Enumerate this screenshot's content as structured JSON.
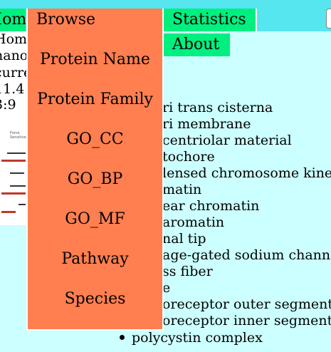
{
  "nav": {
    "home_label": "Home",
    "statistics_label": "Statistics",
    "about_label": "About"
  },
  "infobox": {
    "lines": [
      "Home",
      "nano",
      "curre",
      "11.4",
      "3:9"
    ]
  },
  "dropdown": {
    "title": "Browse",
    "items": [
      "Protein Name",
      "Protein Family",
      "GO_CC",
      "GO_BP",
      "GO_MF",
      "Pathway",
      "Species"
    ]
  },
  "go_list": {
    "items": [
      "ri trans cisterna",
      "ri membrane",
      "centriolar material",
      "tochore",
      "lensed chromosome kinet",
      "matin",
      "ear chromatin",
      "aromatin",
      "nal tip",
      "age-gated sodium channe",
      "ss fiber",
      "e",
      "oreceptor outer segment",
      "oreceptor inner segment"
    ],
    "bullet_item": "polycystin complex"
  },
  "colors": {
    "topbar": "#55e6f0",
    "tab": "#00f080",
    "menu": "#ff7f50",
    "page": "#ccffff"
  }
}
